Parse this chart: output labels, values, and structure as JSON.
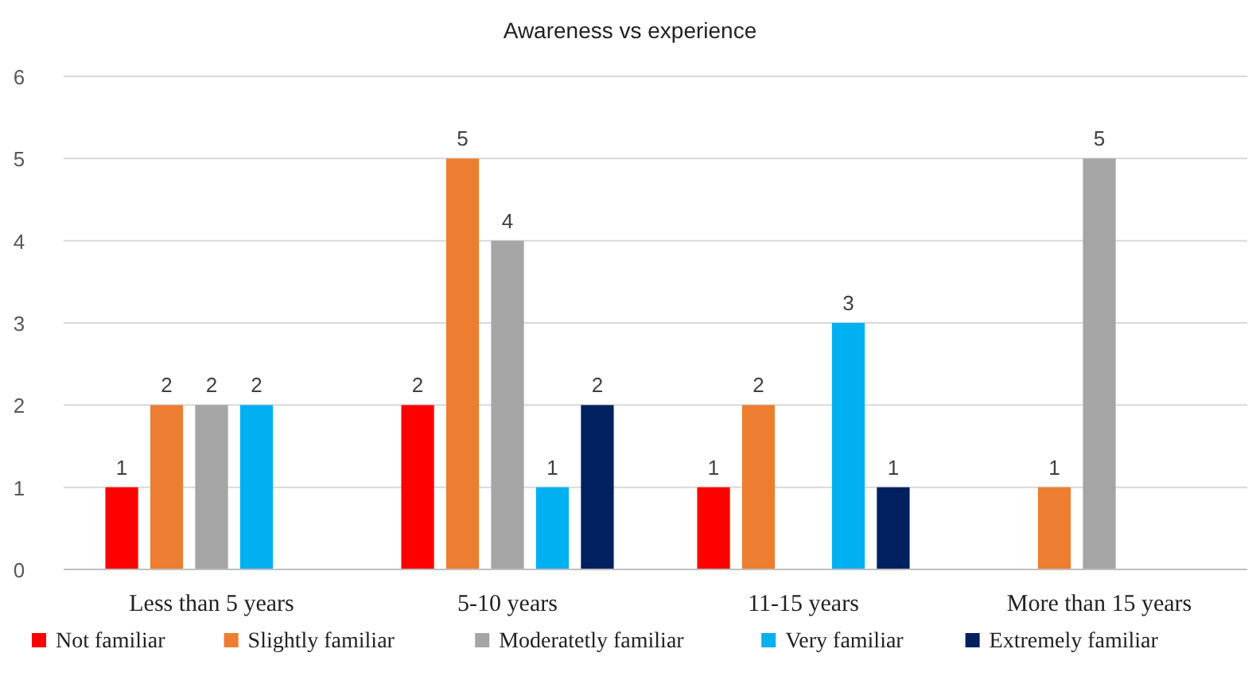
{
  "chart_data": {
    "type": "bar",
    "title": "Awareness vs experience",
    "categories": [
      "Less than 5 years",
      "5-10 years",
      "11-15 years",
      "More than 15 years"
    ],
    "series": [
      {
        "name": "Not familiar",
        "color": "#ff0000",
        "values": [
          1,
          2,
          1,
          null
        ]
      },
      {
        "name": "Slightly familiar",
        "color": "#ed7d31",
        "values": [
          2,
          5,
          2,
          1
        ]
      },
      {
        "name": "Moderatetly familiar",
        "color": "#a5a5a5",
        "values": [
          2,
          4,
          null,
          5
        ]
      },
      {
        "name": "Very familiar",
        "color": "#00b0f0",
        "values": [
          2,
          1,
          3,
          null
        ]
      },
      {
        "name": "Extremely familiar",
        "color": "#002060",
        "values": [
          null,
          2,
          1,
          null
        ]
      }
    ],
    "ylim": [
      0,
      6
    ],
    "yticks": [
      0,
      1,
      2,
      3,
      4,
      5,
      6
    ],
    "grid": "y",
    "legend": "bottom",
    "data_labels": true
  }
}
